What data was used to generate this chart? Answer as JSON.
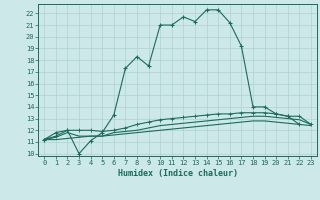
{
  "xlabel": "Humidex (Indice chaleur)",
  "ylabel": "",
  "bg_color": "#cde8e8",
  "grid_color": "#b0d0d0",
  "line_color": "#1a6b5a",
  "xlim": [
    -0.5,
    23.5
  ],
  "ylim": [
    9.8,
    22.8
  ],
  "xticks": [
    0,
    1,
    2,
    3,
    4,
    5,
    6,
    7,
    8,
    9,
    10,
    11,
    12,
    13,
    14,
    15,
    16,
    17,
    18,
    19,
    20,
    21,
    22,
    23
  ],
  "yticks": [
    10,
    11,
    12,
    13,
    14,
    15,
    16,
    17,
    18,
    19,
    20,
    21,
    22
  ],
  "line1_x": [
    0,
    1,
    2,
    3,
    4,
    5,
    6,
    7,
    8,
    9,
    10,
    11,
    12,
    13,
    14,
    15,
    16,
    17,
    18,
    19,
    20,
    21,
    22
  ],
  "line1_y": [
    11.2,
    11.8,
    12.0,
    10.0,
    11.1,
    11.8,
    13.3,
    17.3,
    18.3,
    17.5,
    21.0,
    21.0,
    21.7,
    21.3,
    22.3,
    22.3,
    21.2,
    19.2,
    14.0,
    14.0,
    13.4,
    13.2,
    12.5
  ],
  "line2_x": [
    0,
    1,
    2,
    3,
    4,
    5,
    6,
    7,
    8,
    9,
    10,
    11,
    12,
    13,
    14,
    15,
    16,
    17,
    18,
    19,
    20,
    21,
    22,
    23
  ],
  "line2_y": [
    11.2,
    11.5,
    12.0,
    12.0,
    12.0,
    11.9,
    12.0,
    12.2,
    12.5,
    12.7,
    12.9,
    13.0,
    13.1,
    13.2,
    13.3,
    13.4,
    13.4,
    13.5,
    13.5,
    13.5,
    13.4,
    13.2,
    13.2,
    12.5
  ],
  "line3_x": [
    0,
    1,
    2,
    3,
    4,
    5,
    6,
    7,
    8,
    9,
    10,
    11,
    12,
    13,
    14,
    15,
    16,
    17,
    18,
    19,
    20,
    21,
    22,
    23
  ],
  "line3_y": [
    11.2,
    11.4,
    11.8,
    11.5,
    11.5,
    11.5,
    11.8,
    11.9,
    12.0,
    12.2,
    12.4,
    12.5,
    12.6,
    12.7,
    12.8,
    12.9,
    13.0,
    13.1,
    13.2,
    13.2,
    13.1,
    13.0,
    12.9,
    12.5
  ],
  "line4_x": [
    0,
    1,
    2,
    3,
    4,
    5,
    6,
    7,
    8,
    9,
    10,
    11,
    12,
    13,
    14,
    15,
    16,
    17,
    18,
    19,
    20,
    21,
    22,
    23
  ],
  "line4_y": [
    11.2,
    11.2,
    11.3,
    11.4,
    11.5,
    11.5,
    11.6,
    11.7,
    11.8,
    11.9,
    12.0,
    12.1,
    12.2,
    12.3,
    12.4,
    12.5,
    12.6,
    12.7,
    12.8,
    12.8,
    12.7,
    12.6,
    12.5,
    12.4
  ]
}
